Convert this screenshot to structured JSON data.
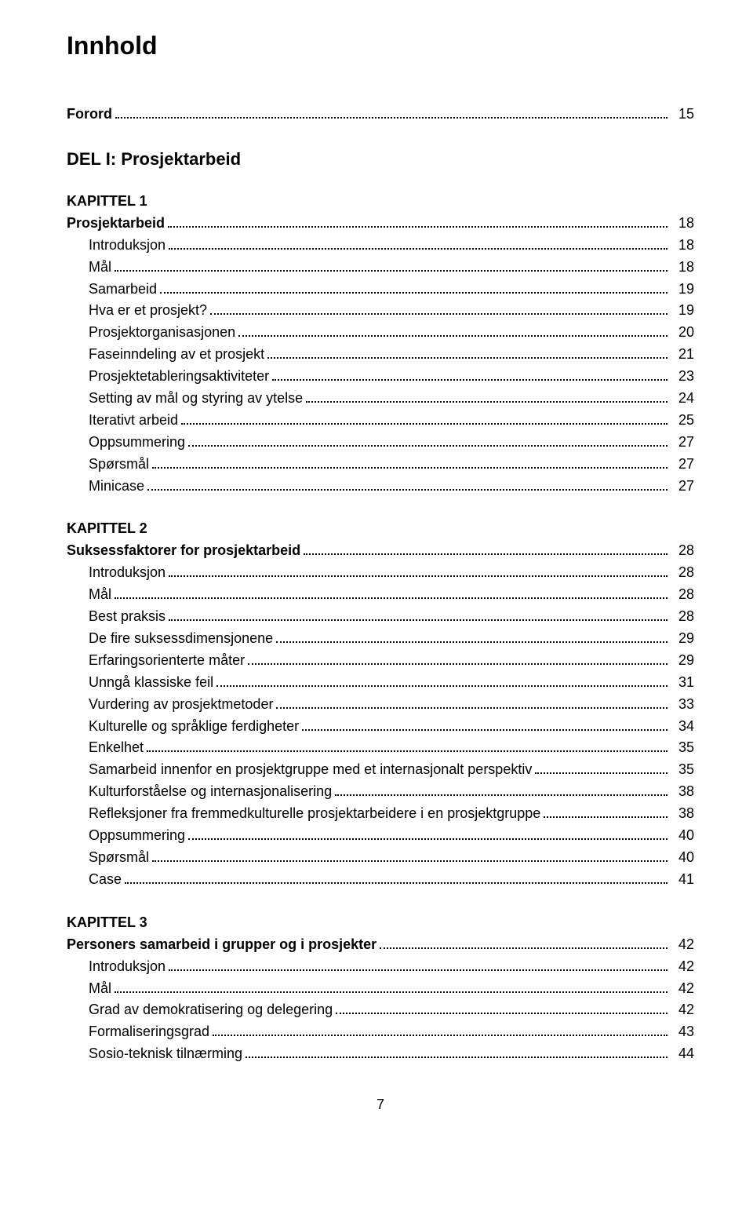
{
  "page": {
    "title": "Innhold",
    "footer_page": "7",
    "colors": {
      "background": "#ffffff",
      "text": "#000000"
    },
    "typography": {
      "title_fontsize": 32,
      "part_fontsize": 22,
      "chapter_fontsize": 18,
      "body_fontsize": 18,
      "line_height": 1.55
    }
  },
  "forord": {
    "label": "Forord",
    "page": "15"
  },
  "part1": {
    "heading": "DEL I:   Prosjektarbeid"
  },
  "chapter1": {
    "heading": "KAPITTEL 1",
    "title": "Prosjektarbeid",
    "title_page": "18",
    "entries": [
      {
        "label": "Introduksjon",
        "page": "18"
      },
      {
        "label": "Mål",
        "page": "18"
      },
      {
        "label": "Samarbeid",
        "page": "19"
      },
      {
        "label": "Hva er et prosjekt?",
        "page": "19"
      },
      {
        "label": "Prosjektorganisasjonen",
        "page": "20"
      },
      {
        "label": "Faseinndeling av et prosjekt",
        "page": "21"
      },
      {
        "label": "Prosjektetableringsaktiviteter",
        "page": "23"
      },
      {
        "label": "Setting av mål og styring av ytelse",
        "page": "24"
      },
      {
        "label": "Iterativt arbeid",
        "page": "25"
      },
      {
        "label": "Oppsummering",
        "page": "27"
      },
      {
        "label": "Spørsmål",
        "page": "27"
      },
      {
        "label": "Minicase",
        "page": "27"
      }
    ]
  },
  "chapter2": {
    "heading": "KAPITTEL 2",
    "title": "Suksessfaktorer for prosjektarbeid",
    "title_page": "28",
    "entries": [
      {
        "label": "Introduksjon",
        "page": "28"
      },
      {
        "label": "Mål",
        "page": "28"
      },
      {
        "label": "Best praksis",
        "page": "28"
      },
      {
        "label": "De fire suksessdimensjonene",
        "page": "29"
      },
      {
        "label": "Erfaringsorienterte måter",
        "page": "29"
      },
      {
        "label": "Unngå klassiske feil",
        "page": "31"
      },
      {
        "label": "Vurdering av prosjektmetoder",
        "page": "33"
      },
      {
        "label": "Kulturelle og språklige ferdigheter",
        "page": "34"
      },
      {
        "label": "Enkelhet",
        "page": "35"
      },
      {
        "label": "Samarbeid innenfor en prosjektgruppe med et internasjonalt perspektiv",
        "page": "35"
      },
      {
        "label": "Kulturforståelse og internasjonalisering",
        "page": "38"
      },
      {
        "label": "Refleksjoner fra fremmedkulturelle prosjektarbeidere i en prosjektgruppe",
        "page": "38"
      },
      {
        "label": "Oppsummering",
        "page": "40"
      },
      {
        "label": "Spørsmål",
        "page": "40"
      },
      {
        "label": "Case",
        "page": "41"
      }
    ]
  },
  "chapter3": {
    "heading": "KAPITTEL 3",
    "title": "Personers samarbeid i grupper og i prosjekter",
    "title_page": "42",
    "entries": [
      {
        "label": "Introduksjon",
        "page": "42"
      },
      {
        "label": "Mål",
        "page": "42"
      },
      {
        "label": "Grad av demokratisering og delegering",
        "page": "42"
      },
      {
        "label": "Formaliseringsgrad",
        "page": "43"
      },
      {
        "label": "Sosio-teknisk tilnærming",
        "page": "44"
      }
    ]
  }
}
